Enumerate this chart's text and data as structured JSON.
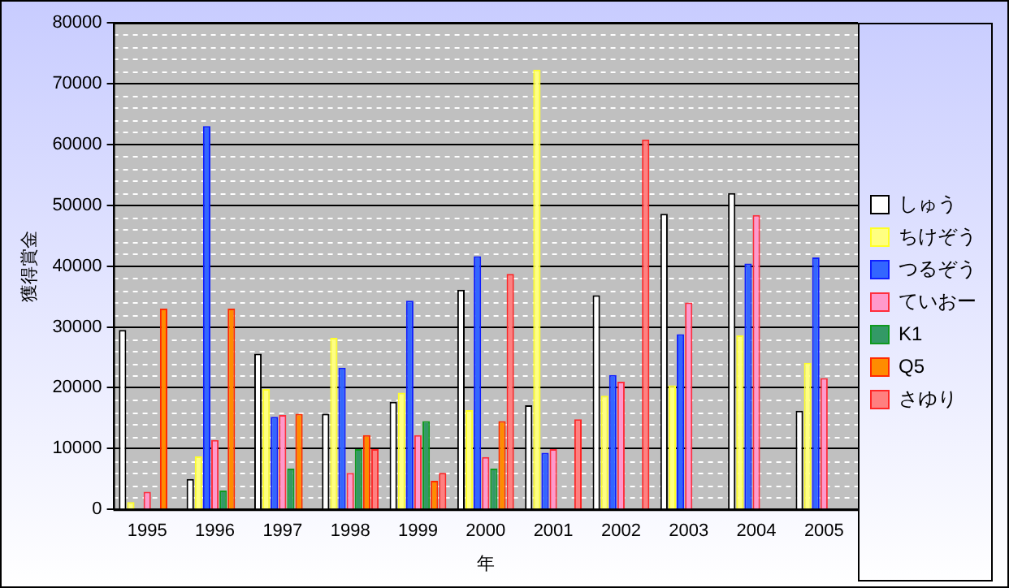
{
  "chart_data": {
    "type": "bar",
    "xlabel": "年",
    "ylabel": "獲得賞金",
    "categories": [
      "1995",
      "1996",
      "1997",
      "1998",
      "1999",
      "2000",
      "2001",
      "2002",
      "2003",
      "2004",
      "2005"
    ],
    "series": [
      {
        "name": "しゅう",
        "color": "#ffffff",
        "values": [
          29500,
          5000,
          25600,
          15700,
          17700,
          36100,
          17100,
          35200,
          48600,
          52000,
          16200
        ]
      },
      {
        "name": "ちけぞう",
        "color": "#ffff80",
        "values": [
          1200,
          8700,
          19800,
          28200,
          19200,
          16300,
          72300,
          18700,
          20400,
          28600,
          24100
        ]
      },
      {
        "name": "つるぞう",
        "color": "#3366ff",
        "values": [
          null,
          63000,
          15200,
          23300,
          34300,
          41600,
          9300,
          22100,
          28800,
          40400,
          41400
        ]
      },
      {
        "name": "ていおー",
        "color": "#ff99cc",
        "values": [
          2900,
          11400,
          15500,
          6000,
          12200,
          8600,
          9900,
          21000,
          34000,
          48400,
          21600
        ]
      },
      {
        "name": "K1",
        "color": "#339966",
        "values": [
          null,
          3100,
          6700,
          9900,
          14500,
          6700,
          null,
          null,
          null,
          null,
          null
        ]
      },
      {
        "name": "Q5",
        "color": "#ff8c00",
        "values": [
          33000,
          33000,
          15700,
          12200,
          4700,
          14500,
          null,
          null,
          null,
          null,
          null
        ]
      },
      {
        "name": "さゆり",
        "color": "#ff8080",
        "values": [
          null,
          null,
          null,
          9900,
          6000,
          38700,
          14800,
          60800,
          null,
          null,
          null
        ]
      }
    ],
    "ylim": [
      0,
      80000
    ],
    "yticks": [
      0,
      10000,
      20000,
      30000,
      40000,
      50000,
      60000,
      70000,
      80000
    ],
    "grid": "y",
    "legend": "right"
  }
}
